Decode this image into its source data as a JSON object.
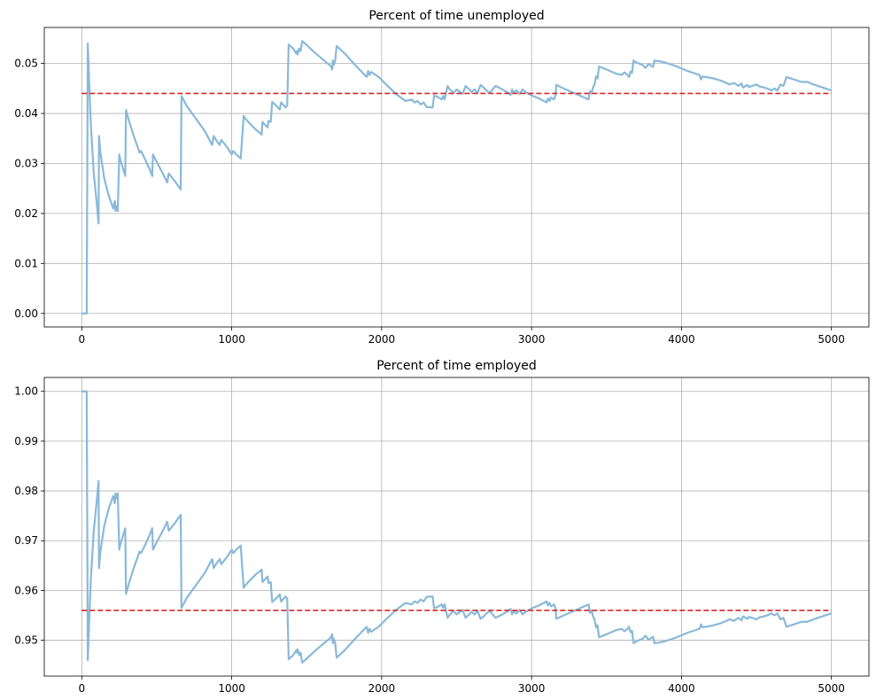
{
  "chart_data": [
    {
      "type": "line",
      "title": "Percent of time unemployed",
      "xlabel": "",
      "ylabel": "",
      "xlim": [
        -250,
        5250
      ],
      "ylim": [
        -0.0027,
        0.0572
      ],
      "xticks": [
        0,
        1000,
        2000,
        3000,
        4000,
        5000
      ],
      "xtick_labels": [
        "0",
        "1000",
        "2000",
        "3000",
        "4000",
        "5000"
      ],
      "yticks": [
        0.0,
        0.01,
        0.02,
        0.03,
        0.04,
        0.05
      ],
      "ytick_labels": [
        "0.00",
        "0.01",
        "0.02",
        "0.03",
        "0.04",
        "0.05"
      ],
      "grid": true,
      "series": [
        {
          "color": "#8ab9d8",
          "style": "solid",
          "x": [
            0,
            30,
            33,
            40,
            60,
            80,
            100,
            112,
            115,
            125,
            150,
            180,
            210,
            220,
            225,
            235,
            240,
            250,
            255,
            280,
            290,
            295,
            320,
            350,
            380,
            385,
            395,
            420,
            450,
            470,
            475,
            500,
            540,
            570,
            580,
            620,
            660,
            665,
            700,
            760,
            820,
            870,
            880,
            900,
            920,
            930,
            950,
            975,
            1000,
            1010,
            1030,
            1060,
            1080,
            1090,
            1120,
            1160,
            1200,
            1205,
            1220,
            1240,
            1245,
            1260,
            1270,
            1300,
            1320,
            1330,
            1360,
            1370,
            1380,
            1410,
            1430,
            1435,
            1440,
            1450,
            1460,
            1470,
            1500,
            1560,
            1620,
            1660,
            1670,
            1675,
            1680,
            1690,
            1700,
            1760,
            1820,
            1900,
            1910,
            1920,
            1930,
            1980,
            2040,
            2100,
            2160,
            2200,
            2220,
            2240,
            2260,
            2280,
            2300,
            2340,
            2350,
            2380,
            2400,
            2410,
            2420,
            2440,
            2450,
            2480,
            2500,
            2540,
            2560,
            2580,
            2600,
            2620,
            2640,
            2660,
            2680,
            2700,
            2720,
            2760,
            2800,
            2840,
            2860,
            2870,
            2880,
            2900,
            2920,
            2940,
            2960,
            3000,
            3050,
            3100,
            3110,
            3120,
            3130,
            3150,
            3160,
            3165,
            3200,
            3260,
            3320,
            3380,
            3390,
            3400,
            3410,
            3420,
            3430,
            3440,
            3450,
            3500,
            3560,
            3600,
            3620,
            3640,
            3650,
            3660,
            3670,
            3680,
            3700,
            3740,
            3760,
            3780,
            3800,
            3810,
            3820,
            3880,
            3960,
            4040,
            4120,
            4130,
            4140,
            4200,
            4260,
            4300,
            4320,
            4350,
            4380,
            4400,
            4410,
            4440,
            4450,
            4500,
            4520,
            4550,
            4580,
            4600,
            4620,
            4640,
            4660,
            4680,
            4700,
            4760,
            4800,
            4840,
            4880,
            4940,
            5000
          ],
          "y": [
            0.0,
            0.0,
            0.0,
            0.054,
            0.038,
            0.028,
            0.022,
            0.018,
            0.0355,
            0.032,
            0.027,
            0.0235,
            0.021,
            0.0225,
            0.0205,
            0.0215,
            0.0205,
            0.0318,
            0.031,
            0.0285,
            0.0275,
            0.0407,
            0.038,
            0.0352,
            0.0327,
            0.0322,
            0.0325,
            0.031,
            0.029,
            0.0275,
            0.0318,
            0.0303,
            0.028,
            0.0262,
            0.028,
            0.0265,
            0.0248,
            0.0435,
            0.0415,
            0.039,
            0.0365,
            0.0337,
            0.0355,
            0.0345,
            0.0337,
            0.0347,
            0.034,
            0.033,
            0.0318,
            0.0325,
            0.0318,
            0.031,
            0.0395,
            0.039,
            0.038,
            0.0368,
            0.0358,
            0.0383,
            0.0378,
            0.0372,
            0.0385,
            0.0383,
            0.0423,
            0.0415,
            0.0408,
            0.0422,
            0.0412,
            0.0416,
            0.0538,
            0.053,
            0.052,
            0.0525,
            0.0518,
            0.053,
            0.0525,
            0.0545,
            0.0537,
            0.052,
            0.0505,
            0.0495,
            0.0488,
            0.0506,
            0.0497,
            0.0505,
            0.0535,
            0.0518,
            0.0498,
            0.0473,
            0.0485,
            0.0477,
            0.0483,
            0.0473,
            0.0455,
            0.0438,
            0.0425,
            0.0428,
            0.0422,
            0.0425,
            0.0418,
            0.0422,
            0.0413,
            0.0412,
            0.0436,
            0.0432,
            0.0428,
            0.0435,
            0.0428,
            0.0455,
            0.045,
            0.0441,
            0.0448,
            0.0439,
            0.0455,
            0.0449,
            0.0443,
            0.0448,
            0.0441,
            0.0457,
            0.0452,
            0.0446,
            0.0441,
            0.0455,
            0.0449,
            0.0442,
            0.0437,
            0.0448,
            0.0442,
            0.0446,
            0.0439,
            0.0448,
            0.0443,
            0.0436,
            0.043,
            0.0422,
            0.043,
            0.0425,
            0.0432,
            0.0428,
            0.0437,
            0.0457,
            0.0452,
            0.0444,
            0.0436,
            0.0428,
            0.0445,
            0.044,
            0.0452,
            0.0458,
            0.0474,
            0.047,
            0.0494,
            0.0488,
            0.048,
            0.0477,
            0.0482,
            0.0477,
            0.0473,
            0.0484,
            0.0481,
            0.0506,
            0.0502,
            0.0497,
            0.0491,
            0.0499,
            0.0495,
            0.0493,
            0.0506,
            0.0503,
            0.0495,
            0.0485,
            0.0477,
            0.0468,
            0.0474,
            0.0471,
            0.0466,
            0.0461,
            0.0458,
            0.0461,
            0.0455,
            0.046,
            0.0452,
            0.0457,
            0.0453,
            0.0458,
            0.0454,
            0.0452,
            0.0449,
            0.0446,
            0.045,
            0.0446,
            0.0458,
            0.0455,
            0.0473,
            0.0467,
            0.0463,
            0.0463,
            0.0458,
            0.0452,
            0.0446
          ]
        },
        {
          "color": "#d62728",
          "style": "dashed",
          "x": [
            0,
            5000
          ],
          "y": [
            0.044,
            0.044
          ]
        }
      ]
    },
    {
      "type": "line",
      "title": "Percent of time employed",
      "xlabel": "",
      "ylabel": "",
      "xlim": [
        -250,
        5250
      ],
      "ylim": [
        0.9428,
        1.0028
      ],
      "xticks": [
        0,
        1000,
        2000,
        3000,
        4000,
        5000
      ],
      "xtick_labels": [
        "0",
        "1000",
        "2000",
        "3000",
        "4000",
        "5000"
      ],
      "yticks": [
        0.95,
        0.96,
        0.97,
        0.98,
        0.99,
        1.0
      ],
      "ytick_labels": [
        "0.95",
        "0.96",
        "0.97",
        "0.98",
        "0.99",
        "1.00"
      ],
      "grid": true,
      "series": [
        {
          "color": "#8ab9d8",
          "style": "solid",
          "x": [
            0,
            30,
            33,
            40,
            60,
            80,
            100,
            112,
            115,
            125,
            150,
            180,
            210,
            220,
            225,
            235,
            240,
            250,
            255,
            280,
            290,
            295,
            320,
            350,
            380,
            385,
            395,
            420,
            450,
            470,
            475,
            500,
            540,
            570,
            580,
            620,
            660,
            665,
            700,
            760,
            820,
            870,
            880,
            900,
            920,
            930,
            950,
            975,
            1000,
            1010,
            1030,
            1060,
            1080,
            1090,
            1120,
            1160,
            1200,
            1205,
            1220,
            1240,
            1245,
            1260,
            1270,
            1300,
            1320,
            1330,
            1360,
            1370,
            1380,
            1410,
            1430,
            1435,
            1440,
            1450,
            1460,
            1470,
            1500,
            1560,
            1620,
            1660,
            1670,
            1675,
            1680,
            1690,
            1700,
            1760,
            1820,
            1900,
            1910,
            1920,
            1930,
            1980,
            2040,
            2100,
            2160,
            2200,
            2220,
            2240,
            2260,
            2280,
            2300,
            2340,
            2350,
            2380,
            2400,
            2410,
            2420,
            2440,
            2450,
            2480,
            2500,
            2540,
            2560,
            2580,
            2600,
            2620,
            2640,
            2660,
            2680,
            2700,
            2720,
            2760,
            2800,
            2840,
            2860,
            2870,
            2880,
            2900,
            2920,
            2940,
            2960,
            3000,
            3050,
            3100,
            3110,
            3120,
            3130,
            3150,
            3160,
            3165,
            3200,
            3260,
            3320,
            3380,
            3390,
            3400,
            3410,
            3420,
            3430,
            3440,
            3450,
            3500,
            3560,
            3600,
            3620,
            3640,
            3650,
            3660,
            3670,
            3680,
            3700,
            3740,
            3760,
            3780,
            3800,
            3810,
            3820,
            3880,
            3960,
            4040,
            4120,
            4130,
            4140,
            4200,
            4260,
            4300,
            4320,
            4350,
            4380,
            4400,
            4410,
            4440,
            4450,
            4500,
            4520,
            4550,
            4580,
            4600,
            4620,
            4640,
            4660,
            4680,
            4700,
            4760,
            4800,
            4840,
            4880,
            4940,
            5000
          ],
          "y": [
            1.0,
            1.0,
            1.0,
            0.946,
            0.962,
            0.972,
            0.978,
            0.982,
            0.9645,
            0.968,
            0.973,
            0.9765,
            0.979,
            0.9775,
            0.9795,
            0.9785,
            0.9795,
            0.9682,
            0.969,
            0.9715,
            0.9725,
            0.9593,
            0.962,
            0.9648,
            0.9673,
            0.9678,
            0.9675,
            0.969,
            0.971,
            0.9725,
            0.9682,
            0.9697,
            0.972,
            0.9738,
            0.972,
            0.9735,
            0.9752,
            0.9565,
            0.9585,
            0.961,
            0.9635,
            0.9663,
            0.9645,
            0.9655,
            0.9663,
            0.9653,
            0.966,
            0.967,
            0.9682,
            0.9675,
            0.9682,
            0.969,
            0.9605,
            0.961,
            0.962,
            0.9632,
            0.9642,
            0.9617,
            0.9622,
            0.9628,
            0.9615,
            0.9617,
            0.9577,
            0.9585,
            0.9592,
            0.9578,
            0.9588,
            0.9584,
            0.9462,
            0.947,
            0.948,
            0.9475,
            0.9482,
            0.947,
            0.9475,
            0.9455,
            0.9463,
            0.948,
            0.9495,
            0.9505,
            0.9512,
            0.9494,
            0.9503,
            0.9495,
            0.9465,
            0.9482,
            0.9502,
            0.9527,
            0.9515,
            0.9523,
            0.9517,
            0.9527,
            0.9545,
            0.9562,
            0.9575,
            0.9572,
            0.9578,
            0.9575,
            0.9582,
            0.9578,
            0.9587,
            0.9588,
            0.9564,
            0.9568,
            0.9572,
            0.9565,
            0.9572,
            0.9545,
            0.955,
            0.9559,
            0.9552,
            0.9561,
            0.9545,
            0.9551,
            0.9557,
            0.9552,
            0.9559,
            0.9543,
            0.9548,
            0.9554,
            0.9559,
            0.9545,
            0.9551,
            0.9558,
            0.9563,
            0.9552,
            0.9558,
            0.9554,
            0.9561,
            0.9552,
            0.9557,
            0.9564,
            0.957,
            0.9578,
            0.957,
            0.9575,
            0.9568,
            0.9572,
            0.9563,
            0.9543,
            0.9548,
            0.9556,
            0.9564,
            0.9572,
            0.9555,
            0.956,
            0.9548,
            0.9542,
            0.9526,
            0.953,
            0.9506,
            0.9512,
            0.952,
            0.9523,
            0.9518,
            0.9523,
            0.9527,
            0.9516,
            0.9519,
            0.9494,
            0.9498,
            0.9503,
            0.9509,
            0.9501,
            0.9505,
            0.9507,
            0.9494,
            0.9497,
            0.9505,
            0.9515,
            0.9523,
            0.9532,
            0.9526,
            0.9529,
            0.9534,
            0.9539,
            0.9542,
            0.9539,
            0.9545,
            0.954,
            0.9548,
            0.9543,
            0.9547,
            0.9542,
            0.9546,
            0.9548,
            0.9551,
            0.9554,
            0.955,
            0.9554,
            0.9542,
            0.9545,
            0.9527,
            0.9533,
            0.9537,
            0.9537,
            0.9542,
            0.9548,
            0.9554
          ]
        },
        {
          "color": "#d62728",
          "style": "dashed",
          "x": [
            0,
            5000
          ],
          "y": [
            0.956,
            0.956
          ]
        }
      ]
    }
  ]
}
